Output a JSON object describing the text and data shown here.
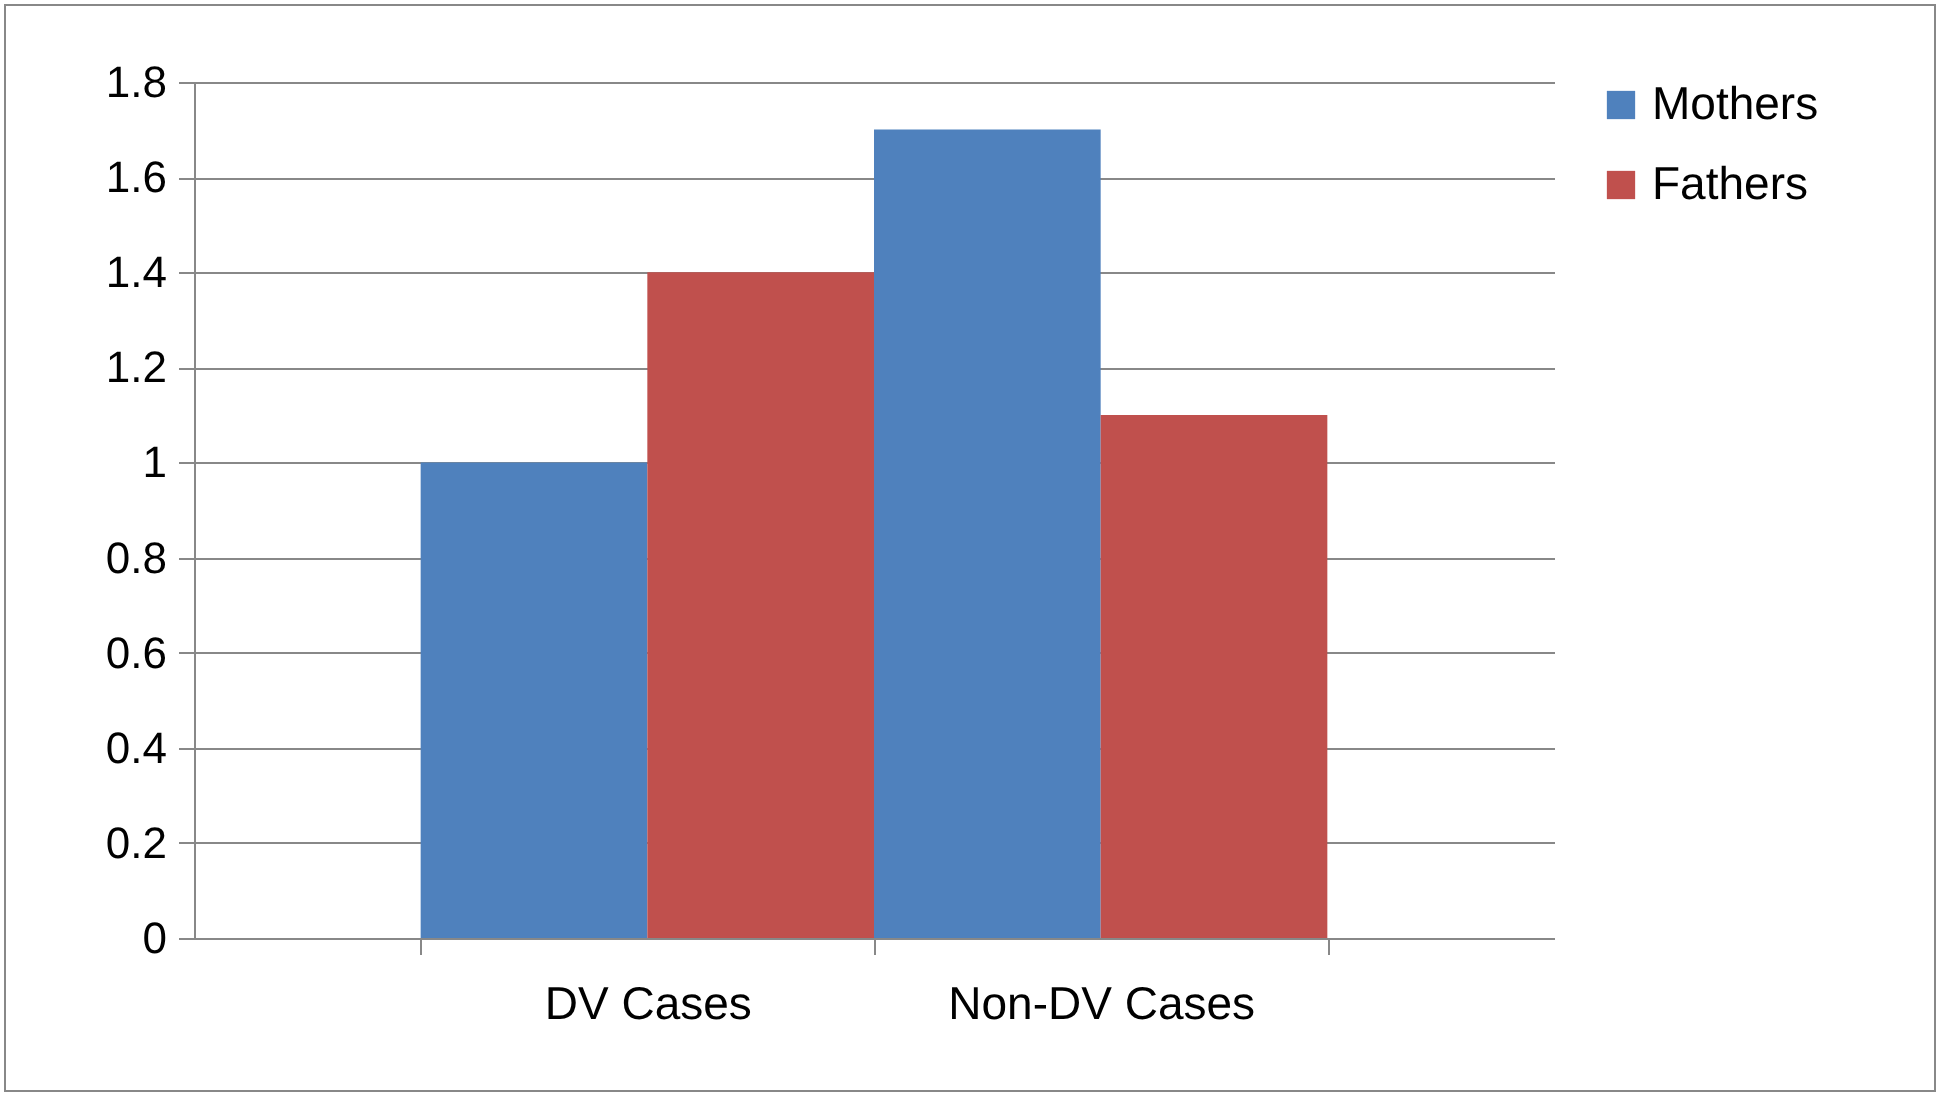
{
  "chart_data": {
    "type": "bar",
    "categories": [
      "DV Cases",
      "Non-DV Cases"
    ],
    "series": [
      {
        "name": "Mothers",
        "color": "#4f81bd",
        "values": [
          1.0,
          1.7
        ]
      },
      {
        "name": "Fathers",
        "color": "#c0504d",
        "values": [
          1.4,
          1.1
        ]
      }
    ],
    "ylim": [
      0,
      1.8
    ],
    "yticks": [
      0,
      0.2,
      0.4,
      0.6,
      0.8,
      1,
      1.2,
      1.4,
      1.6,
      1.8
    ],
    "grid": "y",
    "legend": "right"
  }
}
